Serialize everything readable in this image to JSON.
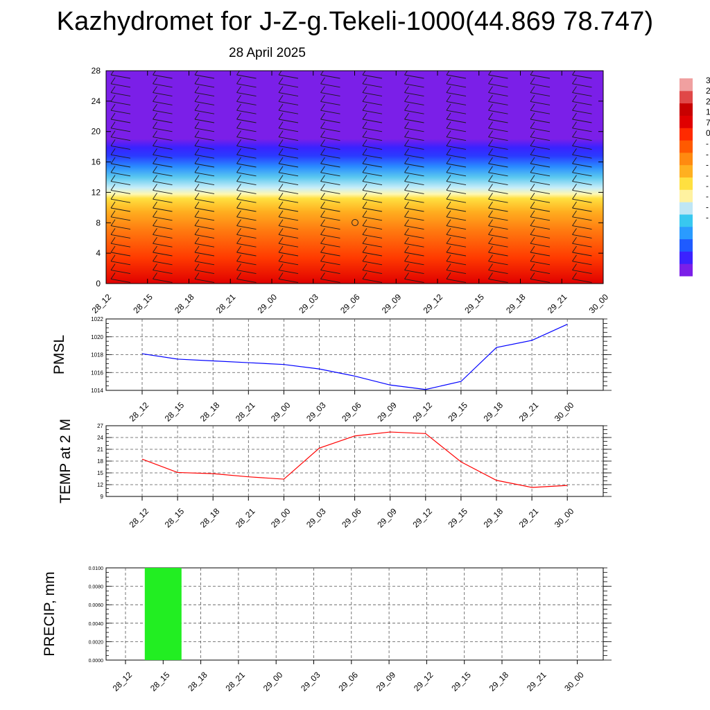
{
  "title": "Kazhydromet for J-Z-g.Tekeli-1000(44.869 78.747)",
  "subtitle": "28 April 2025",
  "time_labels": [
    "28_12",
    "28_15",
    "28_18",
    "28_21",
    "29_00",
    "29_03",
    "29_06",
    "29_09",
    "29_12",
    "29_15",
    "29_18",
    "29_21",
    "30_00"
  ],
  "colorbar": {
    "visible_labels": [
      "3",
      "2",
      "2",
      "1",
      "7",
      "0",
      "-",
      "-",
      "-",
      "-",
      "-",
      "-",
      "-",
      "-"
    ],
    "colors": [
      "#7b1fe8",
      "#3b22ff",
      "#1f5bff",
      "#2a9bff",
      "#38c8f0",
      "#bfe6f5",
      "#fff2a0",
      "#ffe040",
      "#ffb020",
      "#ff8a10",
      "#ff5a00",
      "#ff2a00",
      "#e00000",
      "#c80000",
      "#e04848",
      "#f0a0a0"
    ]
  },
  "chart_data": [
    {
      "type": "heatmap",
      "name": "vertical-profile",
      "x": [
        "28_12",
        "28_15",
        "28_18",
        "28_21",
        "29_00",
        "29_03",
        "29_06",
        "29_09",
        "29_12",
        "29_15",
        "29_18",
        "29_21",
        "30_00"
      ],
      "ylim": [
        0,
        28
      ],
      "yticks": [
        0,
        4,
        8,
        12,
        16,
        20,
        24,
        28
      ],
      "xlabel": "",
      "ylabel": "",
      "description_levels": "warm colors below ~12 km, blue transition 12-18, purple above 18; wind barbs overlaid"
    },
    {
      "type": "line",
      "name": "pmsl",
      "ylabel": "PMSL",
      "categories": [
        "28_12",
        "28_15",
        "28_18",
        "28_21",
        "29_00",
        "29_03",
        "29_06",
        "29_09",
        "29_12",
        "29_15",
        "29_18",
        "29_21",
        "30_00"
      ],
      "values": [
        1018.1,
        1017.5,
        1017.3,
        1017.1,
        1016.9,
        1016.4,
        1015.6,
        1014.6,
        1014.1,
        1015.0,
        1018.8,
        1019.6,
        1021.4
      ],
      "ylim": [
        1014,
        1022
      ],
      "yticks": [
        1014,
        1016,
        1018,
        1020,
        1022
      ],
      "color": "#0000ff"
    },
    {
      "type": "line",
      "name": "temp2m",
      "ylabel": "TEMP at 2 M",
      "categories": [
        "28_12",
        "28_15",
        "28_18",
        "28_21",
        "29_00",
        "29_03",
        "29_06",
        "29_09",
        "29_12",
        "29_15",
        "29_18",
        "29_21",
        "30_00"
      ],
      "values": [
        18.5,
        15.1,
        14.8,
        14.0,
        13.4,
        21.3,
        24.4,
        25.4,
        25.0,
        17.8,
        13.1,
        11.3,
        11.8
      ],
      "ylim": [
        9,
        27
      ],
      "yticks": [
        9,
        12,
        15,
        18,
        21,
        24,
        27
      ],
      "color": "#ff0000"
    },
    {
      "type": "bar",
      "name": "precip",
      "ylabel": "PRECIP, mm",
      "categories": [
        "28_12",
        "28_15",
        "28_18",
        "28_21",
        "29_00",
        "29_03",
        "29_06",
        "29_09",
        "29_12",
        "29_15",
        "29_18",
        "29_21",
        "30_00"
      ],
      "values": [
        0,
        0.01,
        0,
        0,
        0,
        0,
        0,
        0,
        0,
        0,
        0,
        0,
        0
      ],
      "ylim": [
        0,
        0.01
      ],
      "ytick_labels": [
        "0.0000",
        "0.0020",
        "0.0040",
        "0.0060",
        "0.0080",
        "0.0100"
      ],
      "color": "#22ee22"
    }
  ]
}
